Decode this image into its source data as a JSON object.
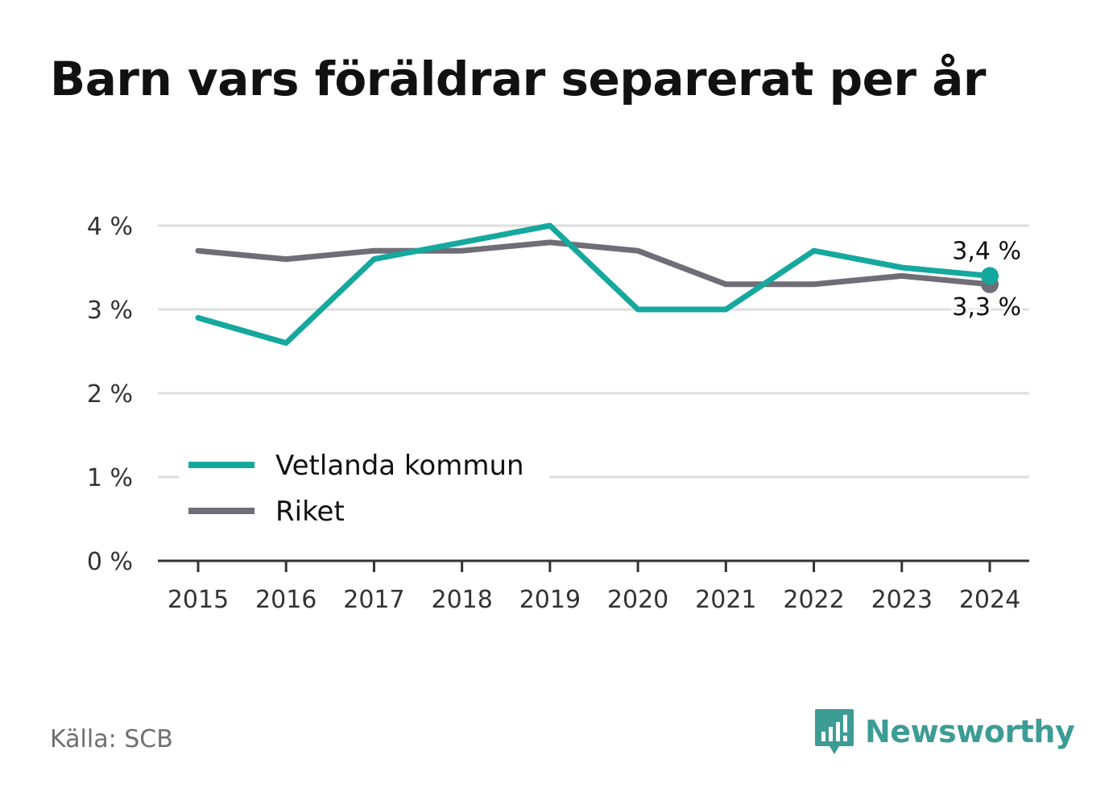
{
  "title": "Barn vars föräldrar separerat per år",
  "source": "Källa: SCB",
  "brand": {
    "name": "Newsworthy",
    "logo_icon": "newsworthy-logo-icon"
  },
  "colors": {
    "series_1": "#15a89e",
    "series_2": "#6f6e76",
    "grid": "#dedede",
    "axis": "#333333",
    "brand": "#3d9c95"
  },
  "chart_data": {
    "type": "line",
    "x": [
      "2015",
      "2016",
      "2017",
      "2018",
      "2019",
      "2020",
      "2021",
      "2022",
      "2023",
      "2024"
    ],
    "ylim": [
      0,
      4
    ],
    "yticks": [
      0,
      1,
      2,
      3,
      4
    ],
    "ytick_labels": [
      "0 %",
      "1 %",
      "2 %",
      "3 %",
      "4 %"
    ],
    "grid": true,
    "legend_position": "bottom-left",
    "series": [
      {
        "name": "Vetlanda kommun",
        "color": "#15a89e",
        "values": [
          2.9,
          2.6,
          3.6,
          3.8,
          4.0,
          3.0,
          3.0,
          3.7,
          3.5,
          3.4
        ],
        "end_label": "3,4 %"
      },
      {
        "name": "Riket",
        "color": "#6f6e76",
        "values": [
          3.7,
          3.6,
          3.7,
          3.7,
          3.8,
          3.7,
          3.3,
          3.3,
          3.4,
          3.3
        ],
        "end_label": "3,3 %"
      }
    ]
  }
}
